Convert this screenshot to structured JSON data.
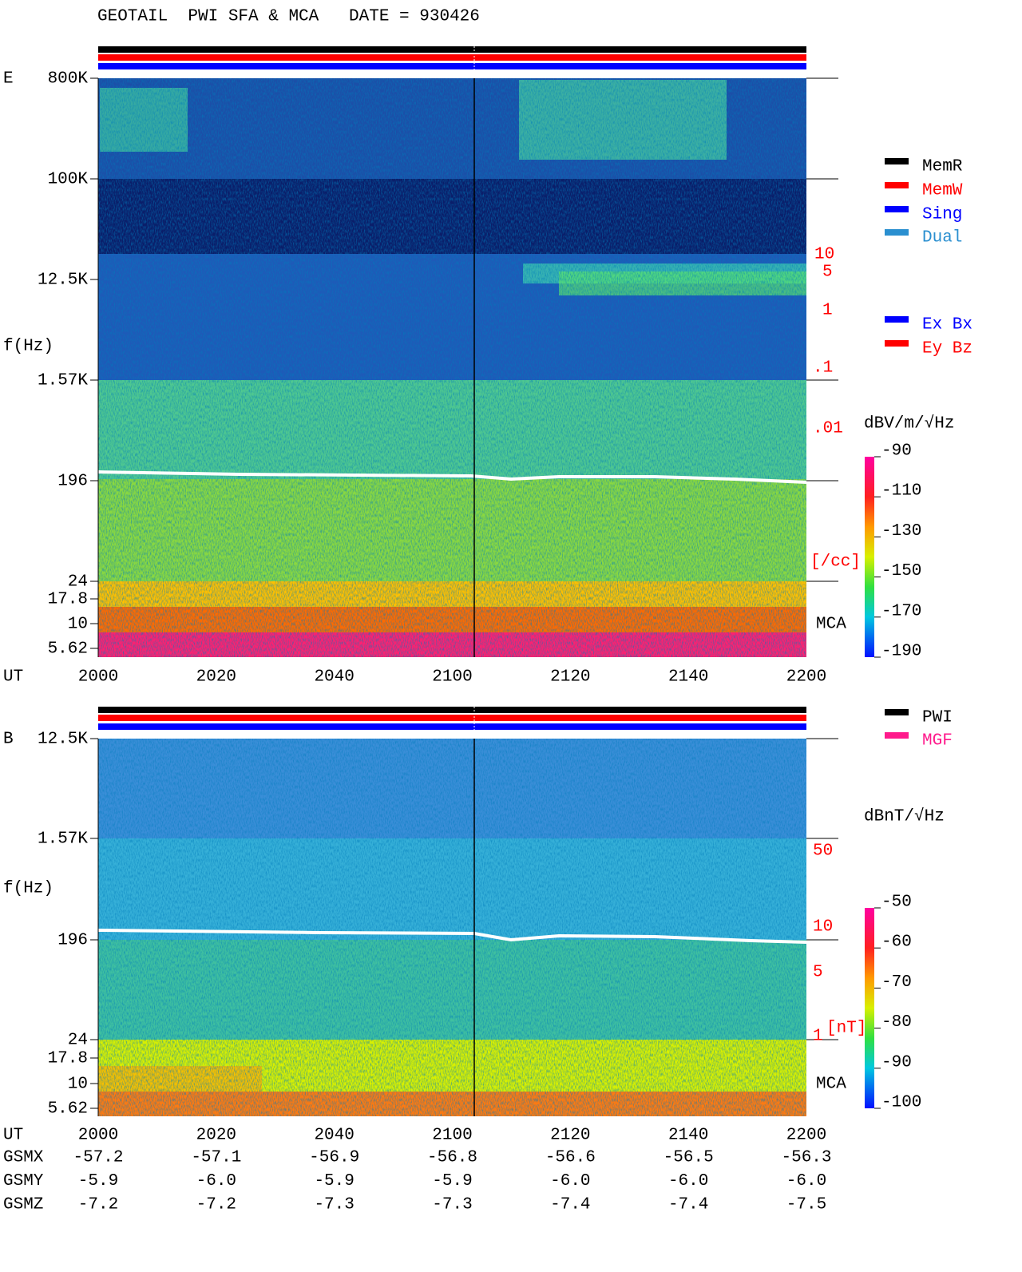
{
  "title": "GEOTAIL  PWI SFA & MCA   DATE = 930426",
  "panels": [
    {
      "label": "E",
      "y_axis_title": "f(Hz)",
      "y_tick_labels": [
        "800K",
        "100K",
        "12.5K",
        "1.57K",
        "196",
        "24",
        "17.8",
        "10",
        "5.62"
      ],
      "x_axis_title": "UT",
      "x_tick_labels": [
        "2000",
        "2020",
        "2040",
        "2100",
        "2120",
        "2140",
        "2200"
      ],
      "density_labels": [
        "10",
        "5",
        "1",
        ".1",
        ".01",
        "[/cc]"
      ],
      "mca_label": "MCA",
      "colorbar_title": "dBV/m/√Hz",
      "colorbar_labels": [
        "-90",
        "-110",
        "-130",
        "-150",
        "-170",
        "-190"
      ]
    },
    {
      "label": "B",
      "y_axis_title": "f(Hz)",
      "y_tick_labels": [
        "12.5K",
        "1.57K",
        "196",
        "24",
        "17.8",
        "10",
        "5.62"
      ],
      "x_axis_title": "UT",
      "x_tick_labels": [
        "2000",
        "2020",
        "2040",
        "2100",
        "2120",
        "2140",
        "2200"
      ],
      "density_labels": [
        "50",
        "10",
        "5",
        "1",
        "[nT]"
      ],
      "mca_label": "MCA",
      "colorbar_title": "dBnT/√Hz",
      "colorbar_labels": [
        "-50",
        "-60",
        "-70",
        "-80",
        "-90",
        "-100"
      ]
    }
  ],
  "legend_mode": [
    {
      "label": "MemR",
      "color": "#000000"
    },
    {
      "label": "MemW",
      "color": "#ff0000"
    },
    {
      "label": "Sing",
      "color": "#0000ff"
    },
    {
      "label": "Dual",
      "color": "#2a8fd0"
    }
  ],
  "legend_antenna": [
    {
      "label": "Ex Bx",
      "color": "#0000ff"
    },
    {
      "label": "Ey Bz",
      "color": "#ff0000"
    }
  ],
  "legend_b": [
    {
      "label": "PWI",
      "color": "#000000"
    },
    {
      "label": "MGF",
      "color": "#ff1a8c"
    }
  ],
  "orbit": [
    {
      "label": "GSMX",
      "values": [
        "-57.2",
        "-57.1",
        "-56.9",
        "-56.8",
        "-56.6",
        "-56.5",
        "-56.3"
      ]
    },
    {
      "label": "GSMY",
      "values": [
        "-5.9",
        "-6.0",
        "-5.9",
        "-5.9",
        "-6.0",
        "-6.0",
        "-6.0"
      ]
    },
    {
      "label": "GSMZ",
      "values": [
        "-7.2",
        "-7.2",
        "-7.3",
        "-7.3",
        "-7.4",
        "-7.4",
        "-7.5"
      ]
    }
  ]
}
